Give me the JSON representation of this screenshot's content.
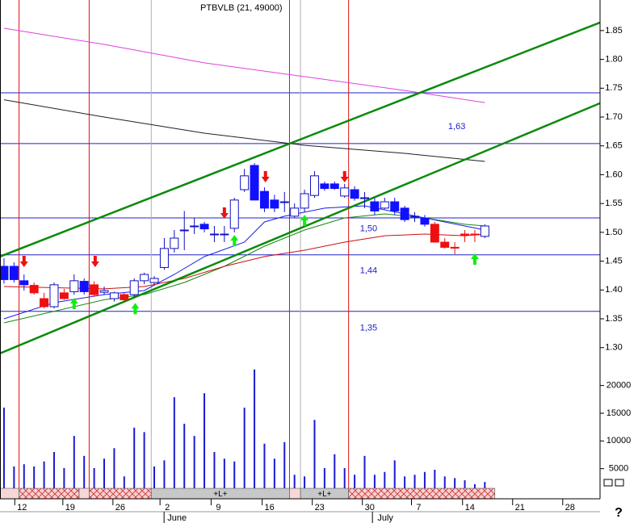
{
  "chart_data": [
    {
      "type": "candlestick",
      "title": "PTBVLB (21, 49000)",
      "categories": [
        null,
        null,
        null,
        null,
        null,
        null,
        null,
        null,
        null,
        null,
        null,
        null,
        null,
        null,
        null,
        null,
        null,
        null,
        null,
        null,
        null,
        null,
        null,
        null,
        null,
        null,
        null,
        null,
        null,
        null,
        null,
        null,
        null,
        null,
        null,
        null,
        null,
        null,
        null,
        null,
        null,
        null,
        null,
        null,
        null,
        null,
        null,
        null,
        null
      ],
      "open": [
        1.441,
        1.441,
        1.416,
        1.408,
        1.385,
        1.371,
        1.395,
        1.397,
        1.415,
        1.409,
        1.399,
        1.385,
        1.392,
        1.392,
        1.416,
        1.413,
        1.439,
        1.472,
        1.504,
        1.511,
        1.514,
        1.497,
        1.497,
        1.507,
        1.574,
        1.616,
        1.571,
        1.556,
        1.553,
        1.528,
        1.542,
        1.564,
        1.584,
        1.584,
        1.563,
        1.574,
        1.56,
        1.553,
        1.542,
        1.553,
        1.542,
        1.528,
        1.525,
        1.514,
        1.483,
        1.474,
        1.497,
        1.497,
        1.493
      ],
      "high": [
        1.455,
        1.448,
        1.427,
        1.413,
        1.395,
        1.413,
        1.402,
        1.427,
        1.42,
        1.415,
        1.406,
        1.397,
        1.395,
        1.42,
        1.43,
        1.424,
        1.49,
        1.504,
        1.537,
        1.525,
        1.518,
        1.511,
        1.511,
        1.56,
        1.61,
        1.62,
        1.578,
        1.565,
        1.57,
        1.55,
        1.574,
        1.606,
        1.588,
        1.588,
        1.584,
        1.58,
        1.57,
        1.56,
        1.56,
        1.56,
        1.546,
        1.535,
        1.53,
        1.518,
        1.49,
        1.483,
        1.504,
        1.504,
        1.514
      ],
      "low": [
        1.411,
        1.413,
        1.399,
        1.392,
        1.368,
        1.368,
        1.383,
        1.392,
        1.392,
        1.388,
        1.392,
        1.38,
        1.38,
        1.388,
        1.41,
        1.41,
        1.435,
        1.465,
        1.469,
        1.497,
        1.5,
        1.483,
        1.483,
        1.5,
        1.57,
        1.556,
        1.535,
        1.535,
        1.535,
        1.525,
        1.535,
        1.56,
        1.572,
        1.574,
        1.56,
        1.555,
        1.542,
        1.53,
        1.54,
        1.53,
        1.518,
        1.518,
        1.51,
        1.483,
        1.472,
        1.462,
        1.483,
        1.483,
        1.49
      ],
      "close": [
        1.418,
        1.418,
        1.409,
        1.395,
        1.371,
        1.409,
        1.385,
        1.416,
        1.397,
        1.392,
        1.396,
        1.395,
        1.383,
        1.416,
        1.427,
        1.42,
        1.472,
        1.49,
        1.504,
        1.511,
        1.506,
        1.497,
        1.497,
        1.556,
        1.598,
        1.556,
        1.542,
        1.542,
        1.553,
        1.542,
        1.567,
        1.598,
        1.576,
        1.576,
        1.577,
        1.559,
        1.56,
        1.537,
        1.553,
        1.537,
        1.522,
        1.528,
        1.514,
        1.483,
        1.474,
        1.474,
        1.497,
        1.497,
        1.511
      ],
      "colors": [
        "#1010ff",
        "#1010ff",
        "#1010ff",
        "#ee1010",
        "#ee1010",
        "#ffffff",
        "#ee1010",
        "#ffffff",
        "#1010ff",
        "#ee1010",
        "#ffffff",
        "#ffffff",
        "#ee1010",
        "#ffffff",
        "#ffffff",
        "#ffffff",
        "#ffffff",
        "#ffffff",
        "#ffffff",
        "#ffffff",
        "#1010ff",
        "#ffffff",
        "#ffffff",
        "#ffffff",
        "#ffffff",
        "#1010ff",
        "#1010ff",
        "#1010ff",
        "#ffffff",
        "#ffffff",
        "#ffffff",
        "#ffffff",
        "#1010ff",
        "#1010ff",
        "#ffffff",
        "#1010ff",
        "#ffffff",
        "#1010ff",
        "#ffffff",
        "#1010ff",
        "#1010ff",
        "#ffffff",
        "#1010ff",
        "#ee1010",
        "#ee1010",
        "#ee1010",
        "#ee1010",
        "#ee1010",
        "#ffffff"
      ],
      "xlim": [
        -0.4,
        59.5
      ],
      "ylim": [
        1.266,
        1.903
      ],
      "yticks": [
        {
          "value": 1.3,
          "label": "1.30"
        },
        1.35,
        {
          "value": 1.4,
          "label": "1.40"
        },
        1.45,
        {
          "value": 1.5,
          "label": "1.50"
        },
        1.55,
        {
          "value": 1.6,
          "label": "1.60"
        },
        1.65,
        {
          "value": 1.7,
          "label": "1.70"
        },
        1.75,
        {
          "value": 1.8,
          "label": "1.80"
        },
        1.85
      ],
      "series": [
        {
          "color": "#e040e0",
          "x": [
            0,
            10,
            20,
            30,
            40,
            48
          ],
          "values": [
            1.854,
            1.826,
            1.794,
            1.77,
            1.746,
            1.725
          ]
        },
        {
          "color": "#202020",
          "x": [
            0,
            10,
            20,
            30,
            40,
            48
          ],
          "values": [
            1.73,
            1.7,
            1.672,
            1.651,
            1.637,
            1.623
          ]
        },
        {
          "color": "#1a1aee",
          "x": [
            0,
            5,
            10,
            14,
            17,
            20,
            24,
            26,
            28,
            32,
            36,
            40,
            44,
            48
          ],
          "values": [
            1.35,
            1.378,
            1.392,
            1.399,
            1.427,
            1.458,
            1.483,
            1.518,
            1.528,
            1.542,
            1.546,
            1.532,
            1.518,
            1.504
          ]
        },
        {
          "color": "#138a13",
          "x": [
            0,
            10,
            14,
            18,
            22,
            26,
            30,
            34,
            38,
            42,
            46,
            48
          ],
          "values": [
            1.343,
            1.383,
            1.392,
            1.413,
            1.441,
            1.476,
            1.504,
            1.525,
            1.532,
            1.525,
            1.514,
            1.511
          ]
        },
        {
          "color": "#cc1010",
          "x": [
            0,
            10,
            14,
            18,
            22,
            26,
            30,
            34,
            38,
            42,
            46,
            48
          ],
          "values": [
            1.406,
            1.402,
            1.406,
            1.42,
            1.441,
            1.458,
            1.469,
            1.483,
            1.494,
            1.497,
            1.494,
            1.497
          ]
        }
      ],
      "trendlines": [
        {
          "color": "#0a8a0a",
          "x": [
            -0.4,
            59.5
          ],
          "values": [
            1.458,
            1.864
          ]
        },
        {
          "color": "#0a8a0a",
          "x": [
            -0.4,
            59.5
          ],
          "values": [
            1.29,
            1.724
          ]
        }
      ],
      "hlines": {
        "color": "#2020c8",
        "values": [
          1.742,
          1.654,
          1.525,
          1.461,
          1.363
        ]
      },
      "vlines": [
        {
          "color": "#e01010",
          "x": [
            1.5,
            8.5,
            28.5,
            34.4
          ]
        },
        {
          "color": "#b0b0b0",
          "x": [
            14.7,
            29.6
          ]
        }
      ],
      "signals": [
        {
          "direction": "down",
          "color": "#ee1010",
          "x": [
            2.0,
            9.1,
            22.0,
            26.1,
            34.0
          ],
          "values": [
            1.448,
            1.448,
            1.532,
            1.595,
            1.595
          ]
        },
        {
          "direction": "up",
          "color": "#10ee10",
          "x": [
            7.0,
            13.1,
            23.0,
            30.0,
            47.0
          ],
          "values": [
            1.378,
            1.369,
            1.487,
            1.522,
            1.455
          ]
        }
      ],
      "annotations": [
        {
          "text": "1,63",
          "x": 45.2,
          "y": 1.683
        },
        {
          "text": "1,50",
          "x": 36.4,
          "y": 1.506
        },
        {
          "text": "1,44",
          "x": 36.4,
          "y": 1.433
        },
        {
          "text": "1,35",
          "x": 36.4,
          "y": 1.334
        }
      ]
    },
    {
      "type": "bar",
      "values": [
        16000,
        5400,
        5800,
        5400,
        6300,
        8000,
        5100,
        10900,
        7300,
        5100,
        6800,
        8700,
        3600,
        12400,
        11600,
        5400,
        6500,
        17900,
        13100,
        10900,
        18600,
        8000,
        6800,
        6300,
        16000,
        22900,
        9500,
        6800,
        9800,
        3900,
        3600,
        13800,
        5100,
        7600,
        5100,
        3900,
        7300,
        3900,
        4400,
        6500,
        3600,
        3900,
        4400,
        4800,
        3600,
        3300,
        2900,
        2200,
        2600
      ],
      "color": "#1a1ad0",
      "xlim": [
        -0.4,
        59.5
      ],
      "ylim": [
        0,
        23300
      ],
      "yticks": [
        5000,
        10000,
        15000,
        20000
      ],
      "xticks": [
        {
          "value": 1.8,
          "label": "12"
        },
        {
          "value": 6.6,
          "label": "19"
        },
        {
          "value": 11.6,
          "label": "26"
        },
        {
          "value": 16.3,
          "label": "2"
        },
        {
          "value": 21.4,
          "label": "9"
        },
        {
          "value": 26.5,
          "label": "16"
        },
        {
          "value": 31.5,
          "label": "23"
        },
        {
          "value": 36.5,
          "label": "30"
        },
        {
          "value": 41.4,
          "label": "7"
        },
        {
          "value": 46.5,
          "label": "14"
        },
        {
          "value": 51.5,
          "label": "21"
        },
        {
          "value": 56.5,
          "label": "28"
        }
      ],
      "months": [
        {
          "value": 16.3,
          "label": "June"
        },
        {
          "value": 37.1,
          "label": "July"
        }
      ],
      "strip": [
        {
          "from": -0.4,
          "to": 1.5,
          "style": "rose"
        },
        {
          "from": 1.5,
          "to": 7.5,
          "style": "hatch"
        },
        {
          "from": 7.5,
          "to": 8.5,
          "style": "rose"
        },
        {
          "from": 8.5,
          "to": 14.7,
          "style": "hatch"
        },
        {
          "from": 14.7,
          "to": 28.5,
          "style": "grey",
          "text": "+L+"
        },
        {
          "from": 28.5,
          "to": 29.6,
          "style": "rose"
        },
        {
          "from": 29.6,
          "to": 34.4,
          "style": "grey",
          "text": "+L+"
        },
        {
          "from": 34.4,
          "to": 49.0,
          "style": "hatch"
        }
      ]
    }
  ],
  "help": "?"
}
